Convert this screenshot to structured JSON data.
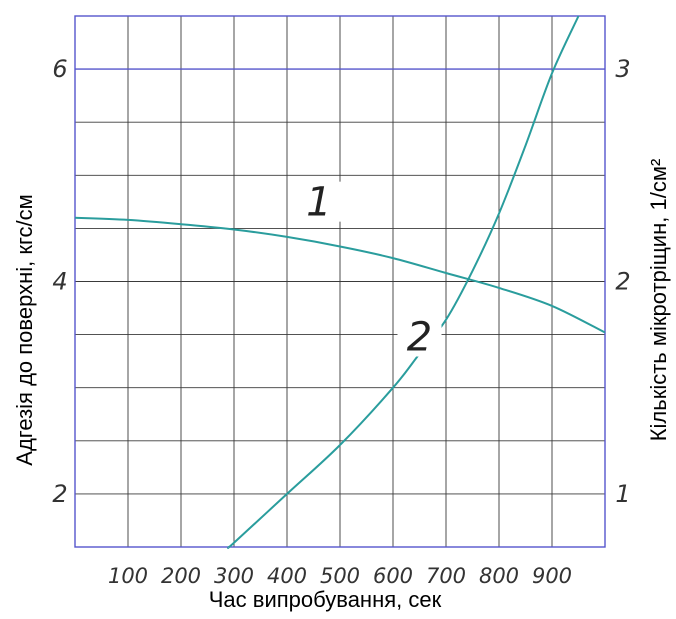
{
  "chart_data": {
    "type": "line",
    "xlabel": "Час випробування, сек",
    "ylabel_left": "Адгезія до поверхні, кгс/см",
    "ylabel_right": "Кількість мікротріщин, 1/см²",
    "x_ticks": [
      "100",
      "200",
      "300",
      "400",
      "500",
      "600",
      "700",
      "800",
      "900"
    ],
    "y_left_ticks": [
      "2",
      "4",
      "6"
    ],
    "y_right_ticks": [
      "1",
      "2",
      "3"
    ],
    "xlim": [
      0,
      1000
    ],
    "ylim_left": [
      1.5,
      6.5
    ],
    "ylim_right": [
      0.75,
      3.25
    ],
    "grid": true,
    "line_color": "#2a9d9d",
    "frame_color": "#5555cc",
    "series": [
      {
        "name": "1",
        "axis": "left",
        "x": [
          0,
          100,
          200,
          300,
          400,
          500,
          600,
          700,
          800,
          900,
          1000
        ],
        "y": [
          4.6,
          4.58,
          4.54,
          4.49,
          4.42,
          4.33,
          4.22,
          4.08,
          3.94,
          3.77,
          3.52
        ]
      },
      {
        "name": "2",
        "axis": "right",
        "x": [
          290,
          300,
          400,
          500,
          600,
          650,
          700,
          750,
          800,
          850,
          900,
          950
        ],
        "y": [
          0.75,
          0.77,
          1.0,
          1.23,
          1.5,
          1.66,
          1.82,
          2.05,
          2.32,
          2.64,
          2.98,
          3.25
        ]
      }
    ]
  }
}
